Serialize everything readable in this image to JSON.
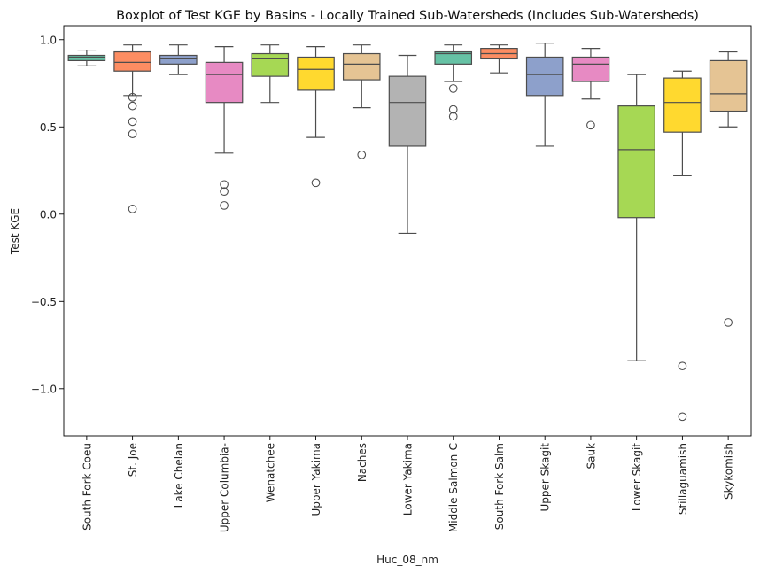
{
  "chart_data": {
    "type": "boxplot",
    "title": "Boxplot of Test KGE by Basins - Locally Trained Sub-Watersheds (Includes Sub-Watersheds)",
    "xlabel": "Huc_08_nm",
    "ylabel": "Test KGE",
    "ylim": [
      -1.27,
      1.08
    ],
    "yticks": [
      1.0,
      0.5,
      0.0,
      -0.5,
      -1.0
    ],
    "ytick_labels": [
      "1.0",
      "0.5",
      "0.0",
      "−0.5",
      "−1.0"
    ],
    "grid": false,
    "categories": [
      "South Fork Coeu",
      "St. Joe",
      "Lake Chelan",
      "Upper Columbia-",
      "Wenatchee",
      "Upper Yakima",
      "Naches",
      "Lower Yakima",
      "Middle Salmon-C",
      "South Fork Salm",
      "Upper Skagit",
      "Sauk",
      "Lower Skagit",
      "Stillaguamish",
      "Skykomish"
    ],
    "colors": [
      "#66c2a5",
      "#fc8d62",
      "#8da0cb",
      "#e78ac3",
      "#a6d854",
      "#ffd92f",
      "#e5c494",
      "#b3b3b3",
      "#66c2a5",
      "#fc8d62",
      "#8da0cb",
      "#e78ac3",
      "#a6d854",
      "#ffd92f",
      "#e5c494"
    ],
    "boxes": [
      {
        "whislo": 0.85,
        "q1": 0.88,
        "med": 0.9,
        "q3": 0.91,
        "whishi": 0.94,
        "fliers": []
      },
      {
        "whislo": 0.68,
        "q1": 0.82,
        "med": 0.87,
        "q3": 0.93,
        "whishi": 0.97,
        "fliers": [
          0.67,
          0.62,
          0.53,
          0.46,
          0.03
        ]
      },
      {
        "whislo": 0.8,
        "q1": 0.86,
        "med": 0.89,
        "q3": 0.91,
        "whishi": 0.97,
        "fliers": []
      },
      {
        "whislo": 0.35,
        "q1": 0.64,
        "med": 0.8,
        "q3": 0.87,
        "whishi": 0.96,
        "fliers": [
          0.17,
          0.13,
          0.05
        ]
      },
      {
        "whislo": 0.64,
        "q1": 0.79,
        "med": 0.89,
        "q3": 0.92,
        "whishi": 0.97,
        "fliers": []
      },
      {
        "whislo": 0.44,
        "q1": 0.71,
        "med": 0.83,
        "q3": 0.9,
        "whishi": 0.96,
        "fliers": [
          0.18
        ]
      },
      {
        "whislo": 0.61,
        "q1": 0.77,
        "med": 0.86,
        "q3": 0.92,
        "whishi": 0.97,
        "fliers": [
          0.34
        ]
      },
      {
        "whislo": -0.11,
        "q1": 0.39,
        "med": 0.64,
        "q3": 0.79,
        "whishi": 0.91,
        "fliers": []
      },
      {
        "whislo": 0.76,
        "q1": 0.86,
        "med": 0.92,
        "q3": 0.93,
        "whishi": 0.97,
        "fliers": [
          0.72,
          0.6,
          0.56
        ]
      },
      {
        "whislo": 0.81,
        "q1": 0.89,
        "med": 0.92,
        "q3": 0.95,
        "whishi": 0.97,
        "fliers": []
      },
      {
        "whislo": 0.39,
        "q1": 0.68,
        "med": 0.8,
        "q3": 0.9,
        "whishi": 0.98,
        "fliers": []
      },
      {
        "whislo": 0.66,
        "q1": 0.76,
        "med": 0.86,
        "q3": 0.9,
        "whishi": 0.95,
        "fliers": [
          0.51
        ]
      },
      {
        "whislo": -0.84,
        "q1": -0.02,
        "med": 0.37,
        "q3": 0.62,
        "whishi": 0.8,
        "fliers": []
      },
      {
        "whislo": 0.22,
        "q1": 0.47,
        "med": 0.64,
        "q3": 0.78,
        "whishi": 0.82,
        "fliers": [
          -0.87,
          -1.16
        ]
      },
      {
        "whislo": 0.5,
        "q1": 0.59,
        "med": 0.69,
        "q3": 0.88,
        "whishi": 0.93,
        "fliers": [
          -0.62
        ]
      }
    ]
  }
}
